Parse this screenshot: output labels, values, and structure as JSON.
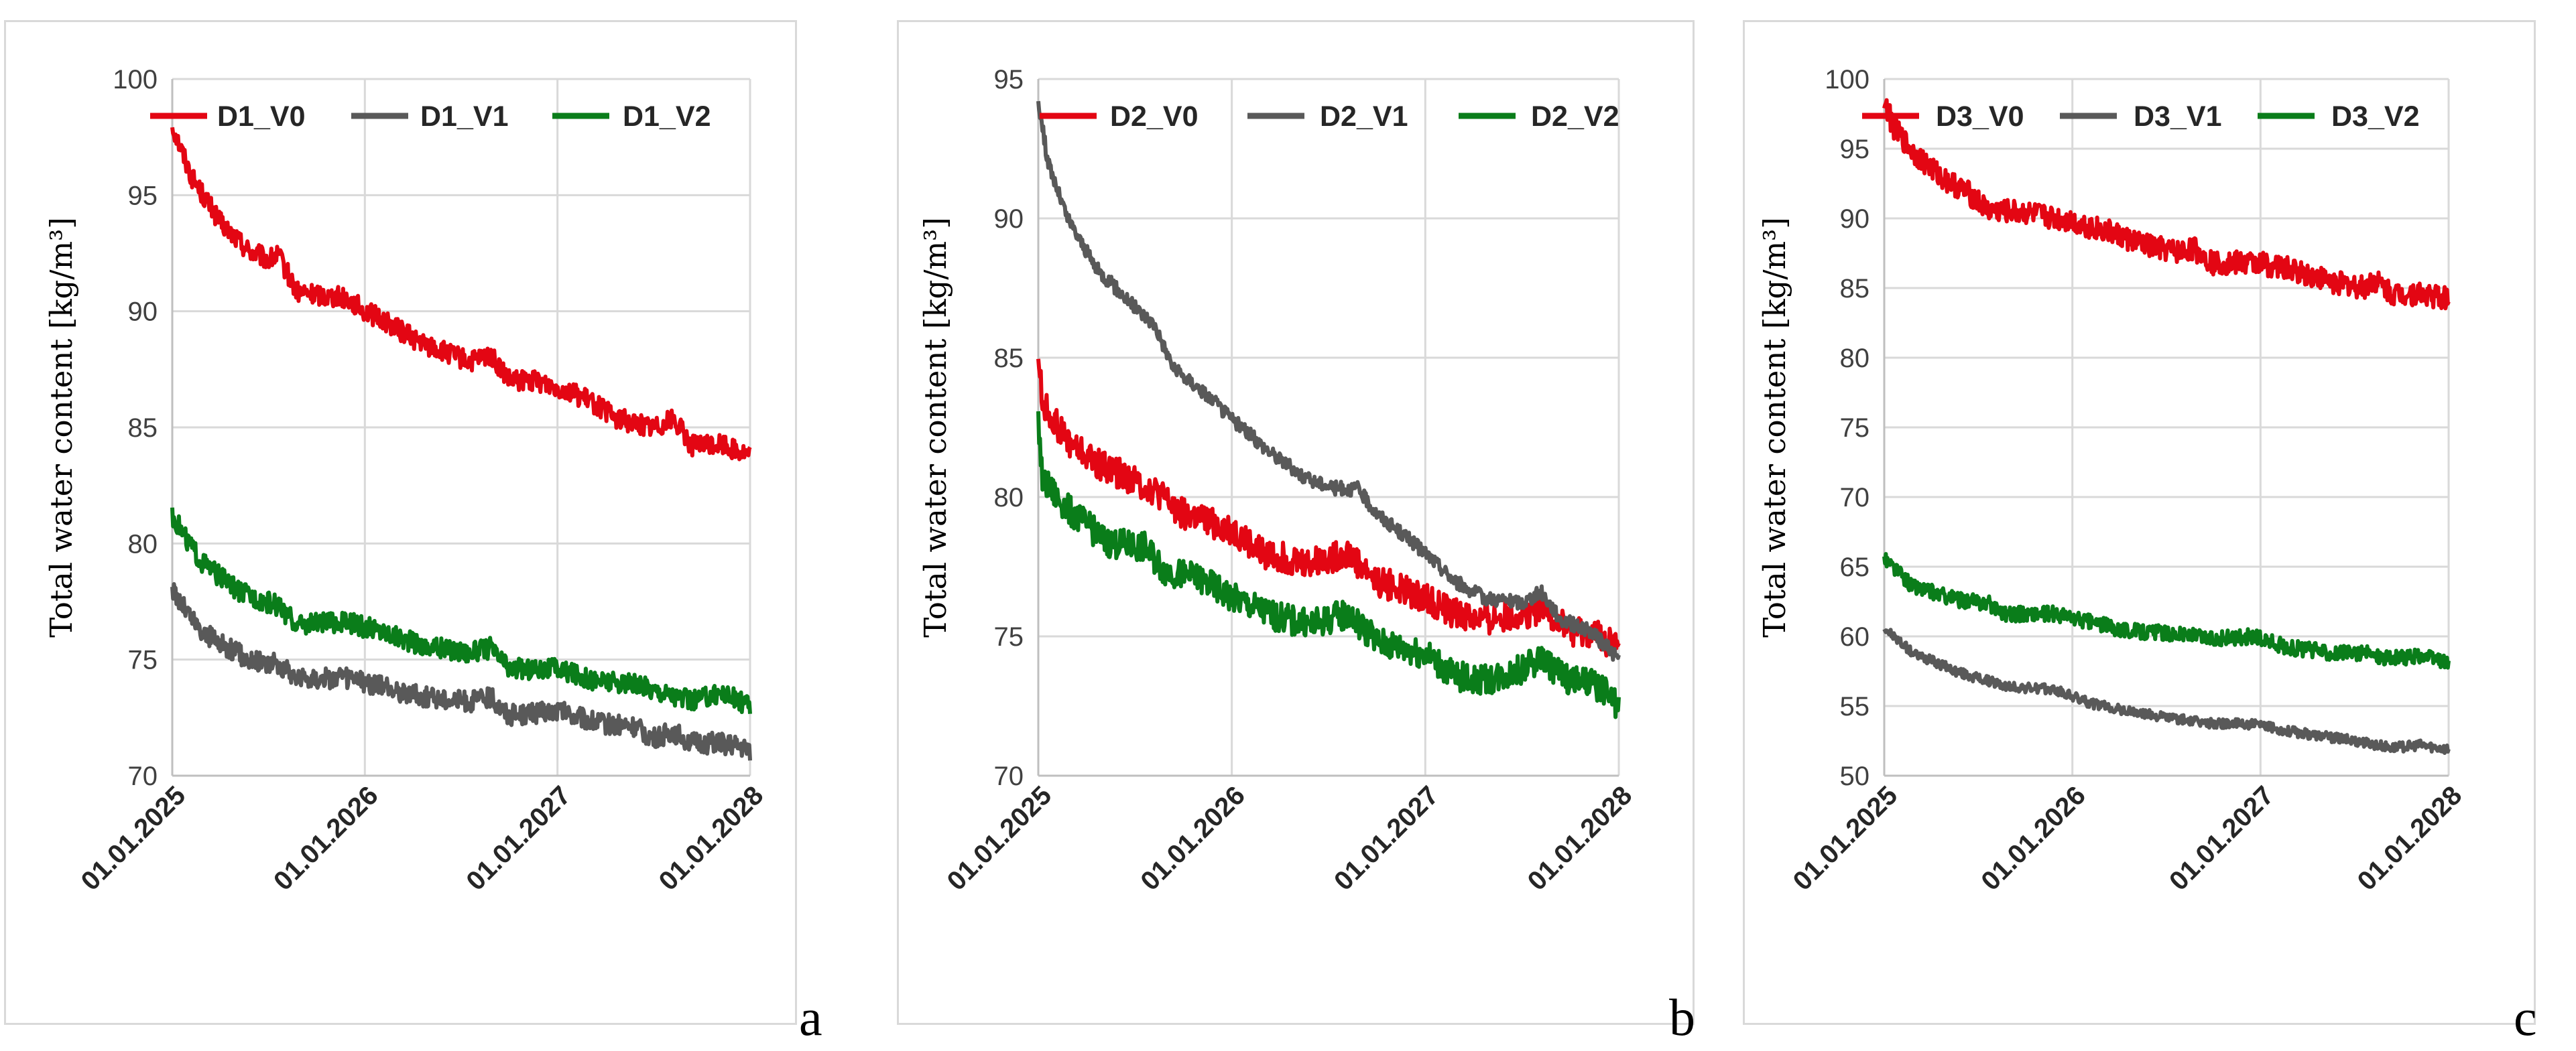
{
  "chart_data": [
    {
      "id": "a",
      "type": "line",
      "panel_label": "a",
      "ylabel": "Total water content [kg/m³]",
      "ylim": [
        70,
        100
      ],
      "yticks": [
        "70",
        "75",
        "80",
        "85",
        "90",
        "95",
        "100"
      ],
      "xlim": [
        2025.0,
        2028.0
      ],
      "xticks": [
        {
          "label": "01.01.2025",
          "value": 2025.0
        },
        {
          "label": "01.01.2026",
          "value": 2026.0
        },
        {
          "label": "01.01.2027",
          "value": 2027.0
        },
        {
          "label": "01.01.2028",
          "value": 2028.0
        }
      ],
      "grid": true,
      "legend": "top",
      "series": [
        {
          "name": "D1_V0",
          "color": "#e30613",
          "noise": 0.45,
          "points": [
            [
              2025.0,
              98.0
            ],
            [
              2025.1,
              95.8
            ],
            [
              2025.25,
              93.8
            ],
            [
              2025.4,
              92.6
            ],
            [
              2025.5,
              92.2
            ],
            [
              2025.55,
              92.4
            ],
            [
              2025.65,
              90.8
            ],
            [
              2025.9,
              90.6
            ],
            [
              2026.0,
              90.0
            ],
            [
              2026.1,
              89.6
            ],
            [
              2026.3,
              88.6
            ],
            [
              2026.55,
              87.8
            ],
            [
              2026.65,
              88.1
            ],
            [
              2026.75,
              87.0
            ],
            [
              2026.9,
              87.0
            ],
            [
              2027.05,
              86.6
            ],
            [
              2027.2,
              86.0
            ],
            [
              2027.3,
              85.4
            ],
            [
              2027.5,
              85.0
            ],
            [
              2027.6,
              85.4
            ],
            [
              2027.7,
              84.2
            ],
            [
              2027.85,
              84.3
            ],
            [
              2028.0,
              83.8
            ]
          ]
        },
        {
          "name": "D1_V1",
          "color": "#595959",
          "noise": 0.45,
          "points": [
            [
              2025.0,
              78.0
            ],
            [
              2025.15,
              76.2
            ],
            [
              2025.4,
              75.0
            ],
            [
              2025.55,
              74.8
            ],
            [
              2025.65,
              74.2
            ],
            [
              2025.9,
              74.2
            ],
            [
              2026.1,
              73.8
            ],
            [
              2026.3,
              73.4
            ],
            [
              2026.55,
              73.2
            ],
            [
              2026.65,
              73.4
            ],
            [
              2026.75,
              72.6
            ],
            [
              2027.0,
              72.8
            ],
            [
              2027.2,
              72.3
            ],
            [
              2027.4,
              72.1
            ],
            [
              2027.5,
              71.6
            ],
            [
              2027.6,
              71.9
            ],
            [
              2027.7,
              71.4
            ],
            [
              2027.85,
              71.4
            ],
            [
              2028.0,
              71.1
            ]
          ]
        },
        {
          "name": "D1_V2",
          "color": "#0a7d1a",
          "noise": 0.45,
          "points": [
            [
              2025.0,
              81.2
            ],
            [
              2025.15,
              79.2
            ],
            [
              2025.35,
              77.9
            ],
            [
              2025.55,
              77.3
            ],
            [
              2025.65,
              76.5
            ],
            [
              2025.9,
              76.6
            ],
            [
              2026.1,
              76.2
            ],
            [
              2026.3,
              75.6
            ],
            [
              2026.55,
              75.3
            ],
            [
              2026.65,
              75.5
            ],
            [
              2026.75,
              74.6
            ],
            [
              2027.0,
              74.6
            ],
            [
              2027.2,
              74.1
            ],
            [
              2027.4,
              73.9
            ],
            [
              2027.55,
              73.6
            ],
            [
              2027.7,
              73.2
            ],
            [
              2027.85,
              73.6
            ],
            [
              2028.0,
              73.0
            ]
          ]
        }
      ]
    },
    {
      "id": "b",
      "type": "line",
      "panel_label": "b",
      "ylabel": "Total water content [kg/m³]",
      "ylim": [
        70,
        95
      ],
      "yticks": [
        "70",
        "75",
        "80",
        "85",
        "90",
        "95"
      ],
      "xlim": [
        2025.0,
        2028.0
      ],
      "xticks": [
        {
          "label": "01.01.2025",
          "value": 2025.0
        },
        {
          "label": "01.01.2026",
          "value": 2026.0
        },
        {
          "label": "01.01.2027",
          "value": 2027.0
        },
        {
          "label": "01.01.2028",
          "value": 2028.0
        }
      ],
      "grid": true,
      "legend": "top",
      "series": [
        {
          "name": "D2_V0",
          "color": "#e30613",
          "noise": 0.55,
          "points": [
            [
              2025.0,
              85.2
            ],
            [
              2025.02,
              83.4
            ],
            [
              2025.15,
              82.0
            ],
            [
              2025.3,
              81.2
            ],
            [
              2025.5,
              80.6
            ],
            [
              2025.6,
              80.2
            ],
            [
              2025.75,
              79.4
            ],
            [
              2026.0,
              78.8
            ],
            [
              2026.15,
              78.0
            ],
            [
              2026.4,
              77.6
            ],
            [
              2026.6,
              78.0
            ],
            [
              2026.75,
              77.0
            ],
            [
              2027.0,
              76.4
            ],
            [
              2027.15,
              75.8
            ],
            [
              2027.3,
              75.6
            ],
            [
              2027.5,
              75.8
            ],
            [
              2027.6,
              76.0
            ],
            [
              2027.75,
              75.2
            ],
            [
              2027.9,
              75.0
            ],
            [
              2028.0,
              74.6
            ]
          ]
        },
        {
          "name": "D2_V1",
          "color": "#595959",
          "noise": 0.25,
          "points": [
            [
              2025.0,
              94.2
            ],
            [
              2025.05,
              92.0
            ],
            [
              2025.15,
              90.0
            ],
            [
              2025.3,
              88.2
            ],
            [
              2025.5,
              86.8
            ],
            [
              2025.6,
              86.2
            ],
            [
              2025.7,
              84.6
            ],
            [
              2025.85,
              83.8
            ],
            [
              2026.0,
              82.8
            ],
            [
              2026.2,
              81.6
            ],
            [
              2026.4,
              80.6
            ],
            [
              2026.55,
              80.3
            ],
            [
              2026.65,
              80.3
            ],
            [
              2026.75,
              79.4
            ],
            [
              2027.0,
              78.0
            ],
            [
              2027.15,
              77.0
            ],
            [
              2027.3,
              76.4
            ],
            [
              2027.5,
              76.2
            ],
            [
              2027.6,
              76.6
            ],
            [
              2027.7,
              75.6
            ],
            [
              2027.85,
              75.2
            ],
            [
              2028.0,
              74.2
            ]
          ]
        },
        {
          "name": "D2_V2",
          "color": "#0a7d1a",
          "noise": 0.55,
          "points": [
            [
              2025.0,
              82.8
            ],
            [
              2025.02,
              80.6
            ],
            [
              2025.15,
              79.6
            ],
            [
              2025.35,
              78.4
            ],
            [
              2025.55,
              78.2
            ],
            [
              2025.65,
              77.4
            ],
            [
              2025.85,
              77.0
            ],
            [
              2026.0,
              76.4
            ],
            [
              2026.2,
              75.8
            ],
            [
              2026.4,
              75.4
            ],
            [
              2026.6,
              75.8
            ],
            [
              2026.75,
              74.8
            ],
            [
              2027.0,
              74.4
            ],
            [
              2027.15,
              73.6
            ],
            [
              2027.3,
              73.4
            ],
            [
              2027.5,
              73.8
            ],
            [
              2027.6,
              74.2
            ],
            [
              2027.75,
              73.4
            ],
            [
              2027.9,
              73.2
            ],
            [
              2028.0,
              72.4
            ]
          ]
        }
      ]
    },
    {
      "id": "c",
      "type": "line",
      "panel_label": "c",
      "ylabel": "Total water content [kg/m³]",
      "ylim": [
        50,
        100
      ],
      "yticks": [
        "50",
        "55",
        "60",
        "65",
        "70",
        "75",
        "80",
        "85",
        "90",
        "95",
        "100"
      ],
      "xlim": [
        2025.0,
        2028.0
      ],
      "xticks": [
        {
          "label": "01.01.2025",
          "value": 2025.0
        },
        {
          "label": "01.01.2026",
          "value": 2026.0
        },
        {
          "label": "01.01.2027",
          "value": 2027.0
        },
        {
          "label": "01.01.2028",
          "value": 2028.0
        }
      ],
      "grid": true,
      "legend": "top",
      "series": [
        {
          "name": "D3_V0",
          "color": "#e30613",
          "noise": 0.85,
          "points": [
            [
              2025.0,
              98.5
            ],
            [
              2025.05,
              96.5
            ],
            [
              2025.15,
              94.8
            ],
            [
              2025.3,
              93.0
            ],
            [
              2025.45,
              91.8
            ],
            [
              2025.55,
              90.6
            ],
            [
              2025.75,
              90.4
            ],
            [
              2026.0,
              89.8
            ],
            [
              2026.2,
              89.0
            ],
            [
              2026.4,
              88.0
            ],
            [
              2026.55,
              87.6
            ],
            [
              2026.65,
              87.8
            ],
            [
              2026.75,
              86.8
            ],
            [
              2027.0,
              86.8
            ],
            [
              2027.2,
              86.2
            ],
            [
              2027.4,
              85.4
            ],
            [
              2027.55,
              85.0
            ],
            [
              2027.6,
              85.6
            ],
            [
              2027.7,
              84.6
            ],
            [
              2027.85,
              84.6
            ],
            [
              2028.0,
              84.2
            ]
          ]
        },
        {
          "name": "D3_V1",
          "color": "#595959",
          "noise": 0.35,
          "points": [
            [
              2025.0,
              60.6
            ],
            [
              2025.15,
              58.8
            ],
            [
              2025.4,
              57.4
            ],
            [
              2025.55,
              56.8
            ],
            [
              2025.65,
              56.4
            ],
            [
              2025.9,
              56.2
            ],
            [
              2026.1,
              55.2
            ],
            [
              2026.3,
              54.6
            ],
            [
              2026.5,
              54.2
            ],
            [
              2026.7,
              53.8
            ],
            [
              2026.95,
              53.7
            ],
            [
              2027.15,
              53.2
            ],
            [
              2027.35,
              52.8
            ],
            [
              2027.55,
              52.4
            ],
            [
              2027.7,
              52.0
            ],
            [
              2027.85,
              52.2
            ],
            [
              2028.0,
              51.9
            ]
          ]
        },
        {
          "name": "D3_V2",
          "color": "#0a7d1a",
          "noise": 0.55,
          "points": [
            [
              2025.0,
              65.6
            ],
            [
              2025.15,
              63.6
            ],
            [
              2025.4,
              62.6
            ],
            [
              2025.55,
              62.4
            ],
            [
              2025.65,
              61.6
            ],
            [
              2025.9,
              61.6
            ],
            [
              2026.1,
              61.0
            ],
            [
              2026.3,
              60.4
            ],
            [
              2026.55,
              60.2
            ],
            [
              2026.75,
              59.8
            ],
            [
              2026.95,
              60.0
            ],
            [
              2027.15,
              59.2
            ],
            [
              2027.4,
              58.8
            ],
            [
              2027.55,
              58.8
            ],
            [
              2027.7,
              58.4
            ],
            [
              2027.85,
              58.6
            ],
            [
              2028.0,
              58.1
            ]
          ]
        }
      ]
    }
  ]
}
